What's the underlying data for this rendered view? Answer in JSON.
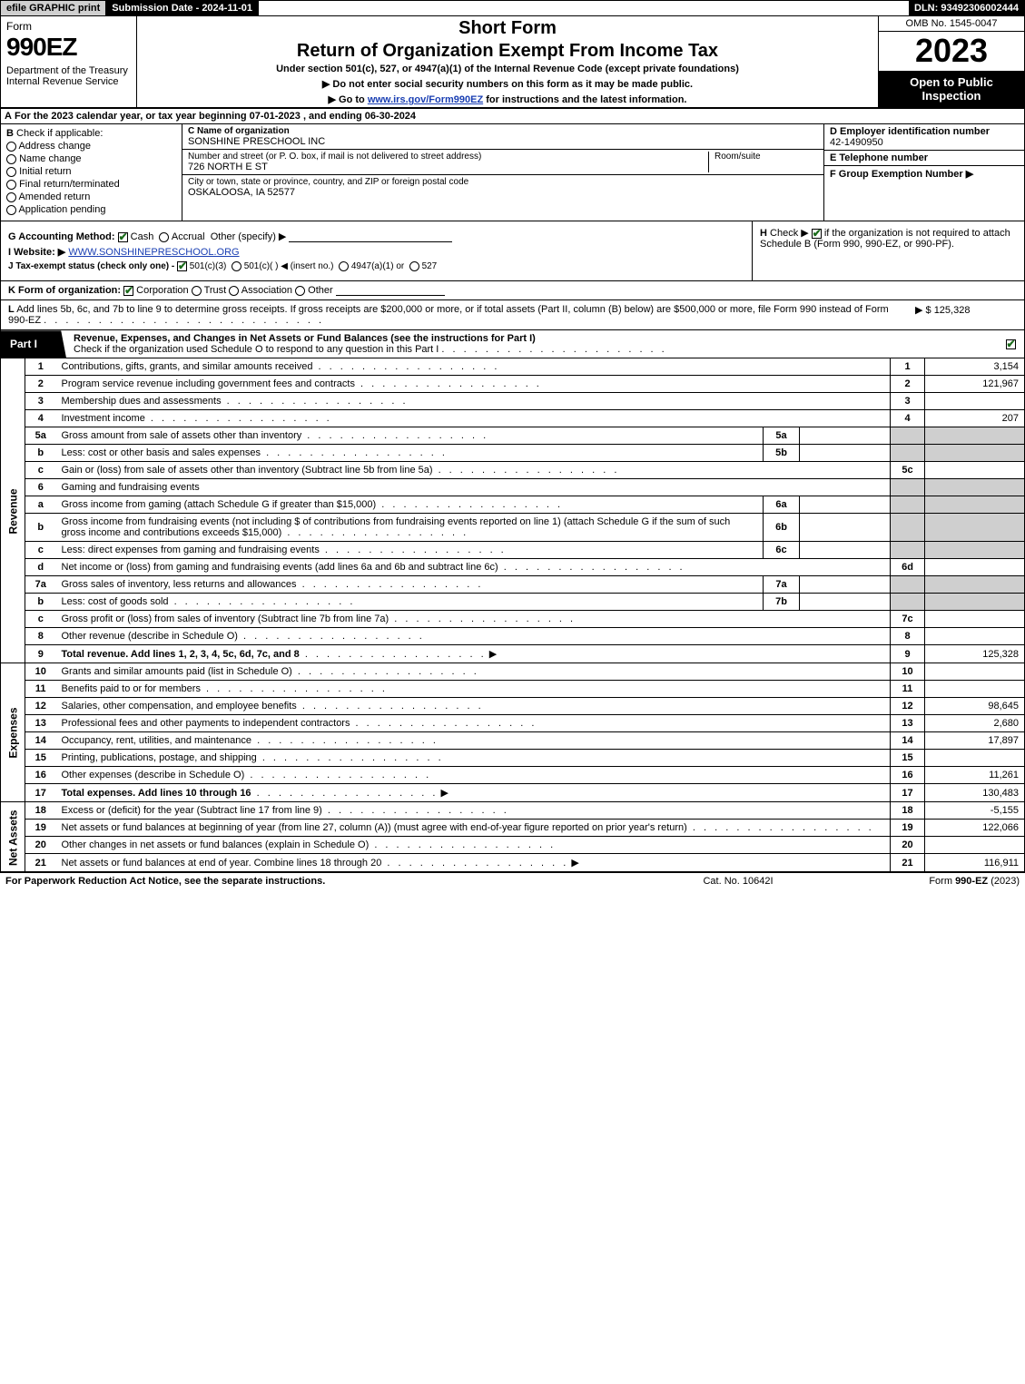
{
  "topbar": {
    "efile": "efile GRAPHIC print",
    "submission": "Submission Date - 2024-11-01",
    "dln": "DLN: 93492306002444"
  },
  "header": {
    "form_word": "Form",
    "form_number": "990EZ",
    "dept": "Department of the Treasury\nInternal Revenue Service",
    "short_form": "Short Form",
    "title2": "Return of Organization Exempt From Income Tax",
    "under": "Under section 501(c), 527, or 4947(a)(1) of the Internal Revenue Code (except private foundations)",
    "bullet1": "▶ Do not enter social security numbers on this form as it may be made public.",
    "bullet2_pre": "▶ Go to ",
    "bullet2_link": "www.irs.gov/Form990EZ",
    "bullet2_post": " for instructions and the latest information.",
    "omb": "OMB No. 1545-0047",
    "year": "2023",
    "inspect": "Open to Public Inspection"
  },
  "lineA": {
    "label": "A",
    "text": "For the 2023 calendar year, or tax year beginning 07-01-2023 , and ending 06-30-2024"
  },
  "sectionB": {
    "label": "B",
    "intro": "Check if applicable:",
    "opts": [
      "Address change",
      "Name change",
      "Initial return",
      "Final return/terminated",
      "Amended return",
      "Application pending"
    ]
  },
  "sectionC": {
    "c_label": "C Name of organization",
    "c_value": "SONSHINE PRESCHOOL INC",
    "street_label": "Number and street (or P. O. box, if mail is not delivered to street address)",
    "street_value": "726 NORTH E ST",
    "room_label": "Room/suite",
    "city_label": "City or town, state or province, country, and ZIP or foreign postal code",
    "city_value": "OSKALOOSA, IA  52577"
  },
  "rightCol": {
    "d_label": "D Employer identification number",
    "d_value": "42-1490950",
    "e_label": "E Telephone number",
    "e_value": "",
    "f_label": "F Group Exemption Number  ▶",
    "f_value": ""
  },
  "sectionG": {
    "g_label": "G Accounting Method:",
    "g_cash": "Cash",
    "g_accrual": "Accrual",
    "g_other": "Other (specify) ▶",
    "i_label": "I Website: ▶",
    "i_value": "WWW.SONSHINEPRESCHOOL.ORG",
    "j_label": "J Tax-exempt status (check only one) -",
    "j_501c3": "501(c)(3)",
    "j_501c": "501(c)(  ) ◀ (insert no.)",
    "j_4947": "4947(a)(1) or",
    "j_527": "527"
  },
  "sectionH": {
    "h_label": "H",
    "h_text_pre": "Check ▶ ",
    "h_text_post": " if the organization is not required to attach Schedule B (Form 990, 990-EZ, or 990-PF)."
  },
  "lineK": {
    "label": "K Form of organization:",
    "opts": [
      "Corporation",
      "Trust",
      "Association",
      "Other"
    ],
    "underline": true
  },
  "lineL": {
    "label": "L",
    "text": "Add lines 5b, 6c, and 7b to line 9 to determine gross receipts. If gross receipts are $200,000 or more, or if total assets (Part II, column (B) below) are $500,000 or more, file Form 990 instead of Form 990-EZ",
    "amount": "▶ $ 125,328"
  },
  "part1": {
    "tab": "Part I",
    "title": "Revenue, Expenses, and Changes in Net Assets or Fund Balances (see the instructions for Part I)",
    "subtitle": "Check if the organization used Schedule O to respond to any question in this Part I"
  },
  "sideLabels": {
    "revenue": "Revenue",
    "expenses": "Expenses",
    "netassets": "Net Assets"
  },
  "rows": [
    {
      "n": "1",
      "t": "Contributions, gifts, grants, and similar amounts received",
      "fl": "1",
      "fv": "3,154",
      "span": 9
    },
    {
      "n": "2",
      "t": "Program service revenue including government fees and contracts",
      "fl": "2",
      "fv": "121,967"
    },
    {
      "n": "3",
      "t": "Membership dues and assessments",
      "fl": "3",
      "fv": ""
    },
    {
      "n": "4",
      "t": "Investment income",
      "fl": "4",
      "fv": "207"
    },
    {
      "n": "5a",
      "t": "Gross amount from sale of assets other than inventory",
      "sl": "5a",
      "sv": "",
      "shaded": true,
      "sub": true
    },
    {
      "n": "b",
      "t": "Less: cost or other basis and sales expenses",
      "sl": "5b",
      "sv": "",
      "shaded": true,
      "sub": true
    },
    {
      "n": "c",
      "t": "Gain or (loss) from sale of assets other than inventory (Subtract line 5b from line 5a)",
      "fl": "5c",
      "fv": "",
      "sub": true
    },
    {
      "n": "6",
      "t": "Gaming and fundraising events",
      "noline": true,
      "shaded": true
    },
    {
      "n": "a",
      "t": "Gross income from gaming (attach Schedule G if greater than $15,000)",
      "sl": "6a",
      "sv": "",
      "shaded": true,
      "sub": true
    },
    {
      "n": "b",
      "t": "Gross income from fundraising events (not including $                      of contributions from fundraising events reported on line 1) (attach Schedule G if the sum of such gross income and contributions exceeds $15,000)",
      "sl": "6b",
      "sv": "",
      "shaded": true,
      "sub": true,
      "tall": true
    },
    {
      "n": "c",
      "t": "Less: direct expenses from gaming and fundraising events",
      "sl": "6c",
      "sv": "",
      "shaded": true,
      "sub": true
    },
    {
      "n": "d",
      "t": "Net income or (loss) from gaming and fundraising events (add lines 6a and 6b and subtract line 6c)",
      "fl": "6d",
      "fv": "",
      "sub": true
    },
    {
      "n": "7a",
      "t": "Gross sales of inventory, less returns and allowances",
      "sl": "7a",
      "sv": "",
      "shaded": true,
      "sub": true
    },
    {
      "n": "b",
      "t": "Less: cost of goods sold",
      "sl": "7b",
      "sv": "",
      "shaded": true,
      "sub": true
    },
    {
      "n": "c",
      "t": "Gross profit or (loss) from sales of inventory (Subtract line 7b from line 7a)",
      "fl": "7c",
      "fv": "",
      "sub": true
    },
    {
      "n": "8",
      "t": "Other revenue (describe in Schedule O)",
      "fl": "8",
      "fv": ""
    },
    {
      "n": "9",
      "t": "Total revenue. Add lines 1, 2, 3, 4, 5c, 6d, 7c, and 8",
      "fl": "9",
      "fv": "125,328",
      "bold": true,
      "arrow": true
    }
  ],
  "expRows": [
    {
      "n": "10",
      "t": "Grants and similar amounts paid (list in Schedule O)",
      "fl": "10",
      "fv": "",
      "span": 8
    },
    {
      "n": "11",
      "t": "Benefits paid to or for members",
      "fl": "11",
      "fv": ""
    },
    {
      "n": "12",
      "t": "Salaries, other compensation, and employee benefits",
      "fl": "12",
      "fv": "98,645"
    },
    {
      "n": "13",
      "t": "Professional fees and other payments to independent contractors",
      "fl": "13",
      "fv": "2,680"
    },
    {
      "n": "14",
      "t": "Occupancy, rent, utilities, and maintenance",
      "fl": "14",
      "fv": "17,897"
    },
    {
      "n": "15",
      "t": "Printing, publications, postage, and shipping",
      "fl": "15",
      "fv": ""
    },
    {
      "n": "16",
      "t": "Other expenses (describe in Schedule O)",
      "fl": "16",
      "fv": "11,261"
    },
    {
      "n": "17",
      "t": "Total expenses. Add lines 10 through 16",
      "fl": "17",
      "fv": "130,483",
      "bold": true,
      "arrow": true
    }
  ],
  "naRows": [
    {
      "n": "18",
      "t": "Excess or (deficit) for the year (Subtract line 17 from line 9)",
      "fl": "18",
      "fv": "-5,155",
      "span": 4
    },
    {
      "n": "19",
      "t": "Net assets or fund balances at beginning of year (from line 27, column (A)) (must agree with end-of-year figure reported on prior year's return)",
      "fl": "19",
      "fv": "122,066",
      "tall": true
    },
    {
      "n": "20",
      "t": "Other changes in net assets or fund balances (explain in Schedule O)",
      "fl": "20",
      "fv": ""
    },
    {
      "n": "21",
      "t": "Net assets or fund balances at end of year. Combine lines 18 through 20",
      "fl": "21",
      "fv": "116,911",
      "arrow": true
    }
  ],
  "footer": {
    "left": "For Paperwork Reduction Act Notice, see the separate instructions.",
    "mid": "Cat. No. 10642I",
    "right_pre": "Form ",
    "right_bold": "990-EZ",
    "right_post": " (2023)"
  }
}
